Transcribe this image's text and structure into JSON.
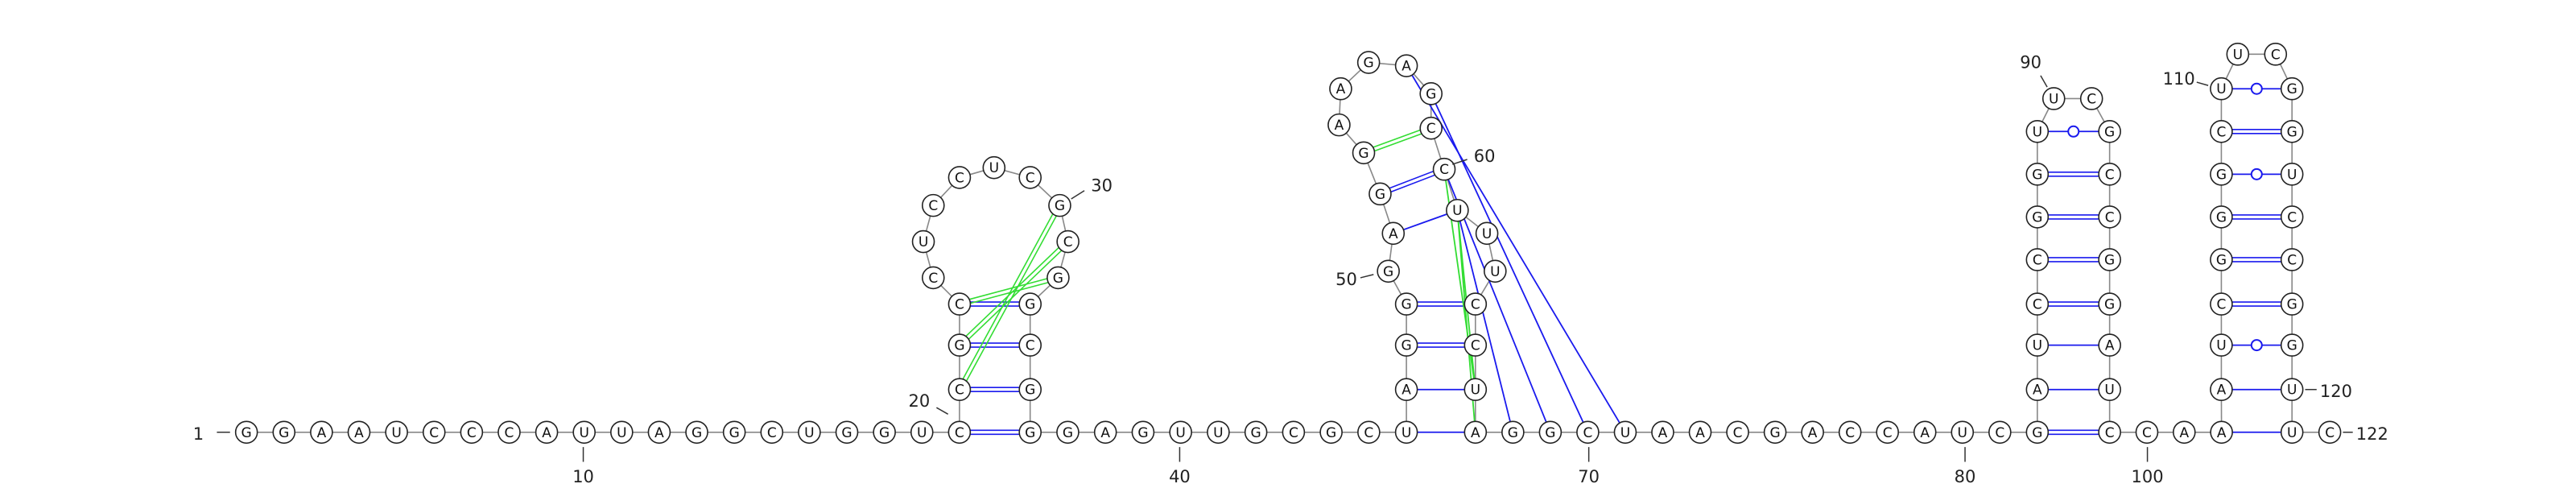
{
  "nucleotides": [
    "G",
    "G",
    "A",
    "A",
    "U",
    "C",
    "C",
    "C",
    "A",
    "U",
    "U",
    "A",
    "G",
    "G",
    "C",
    "U",
    "G",
    "G",
    "U",
    "C",
    "C",
    "G",
    "C",
    "C",
    "U",
    "C",
    "C",
    "U",
    "C",
    "G",
    "C",
    "G",
    "G",
    "C",
    "G",
    "G",
    "G",
    "A",
    "G",
    "U",
    "U",
    "G",
    "C",
    "G",
    "C",
    "U",
    "A",
    "G",
    "G",
    "G",
    "A",
    "G",
    "G",
    "A",
    "A",
    "G",
    "A",
    "G",
    "C",
    "C",
    "U",
    "U",
    "U",
    "C",
    "C",
    "U",
    "A",
    "G",
    "G",
    "C",
    "U",
    "A",
    "A",
    "C",
    "G",
    "A",
    "C",
    "C",
    "A",
    "U",
    "C",
    "G",
    "A",
    "U",
    "C",
    "C",
    "G",
    "G",
    "U",
    "U",
    "C",
    "G",
    "C",
    "C",
    "G",
    "G",
    "A",
    "U",
    "C",
    "C",
    "A",
    "A",
    "A",
    "U",
    "C",
    "G",
    "G",
    "G",
    "C",
    "U",
    "U",
    "C",
    "G",
    "G",
    "U",
    "C",
    "C",
    "G",
    "G",
    "U",
    "U",
    "C"
  ],
  "position_labels": [
    1,
    10,
    20,
    30,
    40,
    50,
    60,
    70,
    80,
    90,
    100,
    110,
    120,
    122
  ]
}
